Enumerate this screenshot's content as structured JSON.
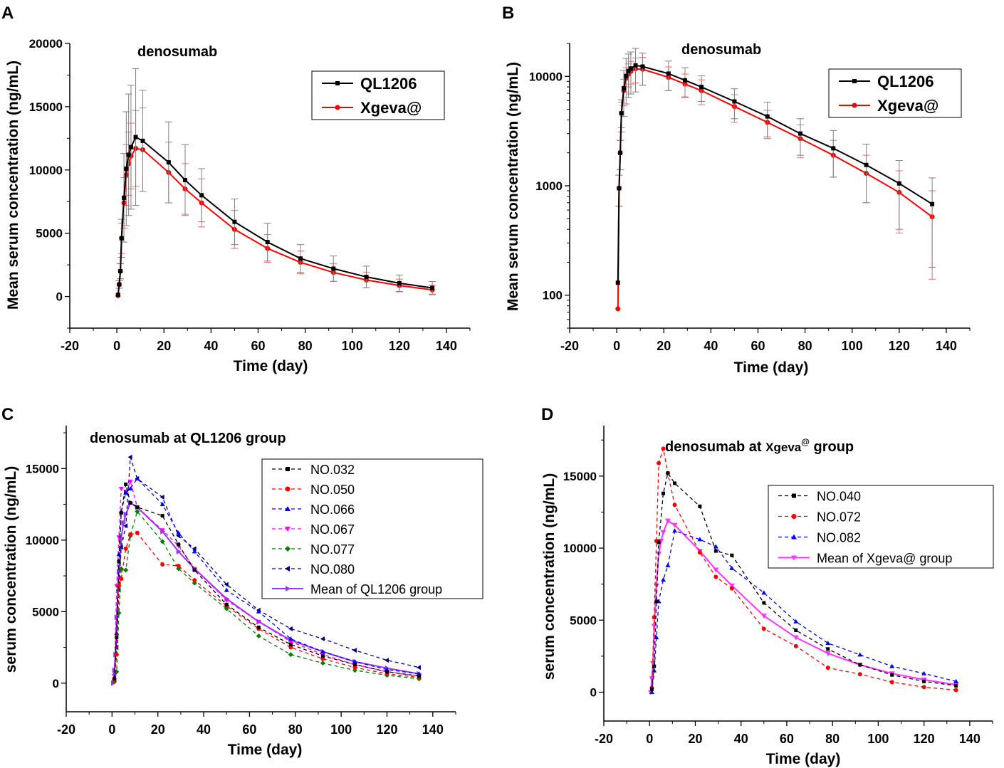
{
  "colors": {
    "axis": "#000000",
    "black": "#000000",
    "red": "#ff0000",
    "blue": "#0000ff",
    "magenta": "#ff00ff",
    "green": "#008000",
    "navy": "#000080",
    "violet": "#9933ff",
    "pink": "#ff33ff",
    "err_black": "#808080",
    "err_red": "#ff6666"
  },
  "chart_data": [
    {
      "panel_label": "A",
      "type": "line",
      "title": "denosumab",
      "xlabel": "Time (day)",
      "ylabel": "Mean serum concentration (ng/mL)",
      "xlim": [
        -20,
        150
      ],
      "ylim": [
        -2500,
        20000
      ],
      "yscale": "linear",
      "xticks": [
        -20,
        0,
        20,
        40,
        60,
        80,
        100,
        120,
        140
      ],
      "yticks": [
        0,
        5000,
        10000,
        15000,
        20000
      ],
      "legend": "top-right",
      "series": [
        {
          "name": "QL1206",
          "color": "black",
          "marker": "square",
          "dashed": false,
          "x": [
            0.5,
            1,
            1.5,
            2,
            3,
            4,
            5,
            6,
            8,
            11,
            22,
            29,
            36,
            50,
            64,
            78,
            92,
            106,
            120,
            134
          ],
          "y": [
            130,
            950,
            2000,
            4600,
            7800,
            10100,
            11200,
            11800,
            12600,
            12300,
            10600,
            9200,
            8000,
            5900,
            4300,
            3000,
            2200,
            1550,
            1050,
            680
          ],
          "err": [
            0,
            300,
            600,
            1500,
            3500,
            4500,
            4800,
            4900,
            5400,
            4000,
            3200,
            2800,
            2100,
            1800,
            1500,
            1100,
            1000,
            850,
            650,
            500
          ]
        },
        {
          "name": "Xgeva@",
          "color": "red",
          "marker": "circle",
          "dashed": false,
          "x": [
            0.5,
            1,
            1.5,
            2,
            3,
            4,
            5,
            6,
            8,
            11,
            22,
            29,
            36,
            50,
            64,
            78,
            92,
            106,
            120,
            134
          ],
          "y": [
            75,
            950,
            2000,
            4600,
            7400,
            9600,
            10500,
            11100,
            11700,
            11600,
            9800,
            8500,
            7400,
            5300,
            3800,
            2700,
            1900,
            1300,
            870,
            520
          ],
          "err": [
            0,
            300,
            600,
            1200,
            2000,
            2400,
            2500,
            2600,
            3000,
            3300,
            2400,
            2000,
            1900,
            1500,
            1100,
            900,
            700,
            600,
            500,
            380
          ]
        }
      ]
    },
    {
      "panel_label": "B",
      "type": "line",
      "title": "denosumab",
      "xlabel": "Time (day)",
      "ylabel": "Mean serum concentration (ng/mL)",
      "xlim": [
        -20,
        150
      ],
      "ylim": [
        50,
        20000
      ],
      "yscale": "log",
      "xticks": [
        -20,
        0,
        20,
        40,
        60,
        80,
        100,
        120,
        140
      ],
      "yticks": [
        100,
        1000,
        10000
      ],
      "legend": "top-right",
      "series": [
        {
          "name": "QL1206",
          "color": "black",
          "marker": "square",
          "dashed": false,
          "x": [
            0.5,
            1,
            1.5,
            2,
            3,
            4,
            5,
            6,
            8,
            11,
            22,
            29,
            36,
            50,
            64,
            78,
            92,
            106,
            120,
            134
          ],
          "y": [
            130,
            950,
            2000,
            4600,
            7800,
            10100,
            11200,
            11800,
            12600,
            12300,
            10600,
            9200,
            8000,
            5900,
            4300,
            3000,
            2200,
            1550,
            1050,
            680
          ],
          "err": [
            0,
            300,
            600,
            1500,
            3500,
            4500,
            4800,
            4900,
            5400,
            4000,
            3200,
            2800,
            2100,
            1800,
            1500,
            1100,
            1000,
            850,
            650,
            500
          ]
        },
        {
          "name": "Xgeva@",
          "color": "red",
          "marker": "circle",
          "dashed": false,
          "x": [
            0.5,
            1,
            1.5,
            2,
            3,
            4,
            5,
            6,
            8,
            11,
            22,
            29,
            36,
            50,
            64,
            78,
            92,
            106,
            120,
            134
          ],
          "y": [
            75,
            950,
            2000,
            4600,
            7400,
            9600,
            10500,
            11100,
            11700,
            11600,
            9800,
            8500,
            7400,
            5300,
            3800,
            2700,
            1900,
            1300,
            870,
            520
          ],
          "err": [
            0,
            300,
            600,
            1200,
            2000,
            2400,
            2500,
            2600,
            3000,
            3300,
            2400,
            2000,
            1900,
            1500,
            1100,
            900,
            700,
            600,
            500,
            380
          ]
        }
      ]
    },
    {
      "panel_label": "C",
      "type": "line",
      "title": "denosumab at QL1206 group",
      "xlabel": "Time (day)",
      "ylabel": "serum concentration (ng/mL)",
      "xlim": [
        -20,
        150
      ],
      "ylim": [
        -2000,
        18000
      ],
      "yscale": "linear",
      "xticks": [
        -20,
        0,
        20,
        40,
        60,
        80,
        100,
        120,
        140
      ],
      "yticks": [
        0,
        5000,
        10000,
        15000
      ],
      "legend": "right",
      "series": [
        {
          "name": "NO.032",
          "color": "black",
          "marker": "square",
          "dashed": true,
          "x": [
            1,
            2,
            3,
            4,
            6,
            8,
            11,
            22,
            29,
            36,
            50,
            64,
            78,
            92,
            106,
            120,
            134
          ],
          "y": [
            300,
            3200,
            8500,
            11900,
            13900,
            12600,
            12300,
            11700,
            9700,
            7900,
            5500,
            3900,
            2700,
            1900,
            1300,
            800,
            500
          ]
        },
        {
          "name": "NO.050",
          "color": "red",
          "marker": "circle",
          "dashed": true,
          "x": [
            1,
            2,
            3,
            4,
            6,
            8,
            11,
            22,
            29,
            36,
            50,
            64,
            78,
            92,
            106,
            120,
            134
          ],
          "y": [
            200,
            2000,
            6800,
            7300,
            9400,
            10400,
            10500,
            8300,
            8200,
            7200,
            5400,
            3800,
            2500,
            1700,
            1100,
            650,
            400
          ]
        },
        {
          "name": "NO.066",
          "color": "blue",
          "marker": "triangle-up",
          "dashed": true,
          "x": [
            1,
            2,
            3,
            4,
            6,
            8,
            11,
            22,
            29,
            36,
            50,
            64,
            78,
            92,
            106,
            120,
            134
          ],
          "y": [
            400,
            3500,
            9000,
            12000,
            13300,
            13600,
            14300,
            12500,
            10500,
            9200,
            6500,
            5000,
            3100,
            2200,
            1500,
            950,
            650
          ]
        },
        {
          "name": "NO.067",
          "color": "magenta",
          "marker": "triangle-down",
          "dashed": true,
          "x": [
            1,
            2,
            3,
            4,
            6,
            8,
            11,
            22,
            29,
            36,
            50,
            64,
            78,
            92,
            106,
            120,
            134
          ],
          "y": [
            500,
            6800,
            10200,
            13600,
            13400,
            14100,
            12300,
            10700,
            9600,
            8000,
            5800,
            4300,
            2900,
            2000,
            1300,
            800,
            500
          ]
        },
        {
          "name": "NO.077",
          "color": "green",
          "marker": "diamond",
          "dashed": true,
          "x": [
            1,
            2,
            3,
            4,
            6,
            8,
            11,
            22,
            29,
            36,
            50,
            64,
            78,
            92,
            106,
            120,
            134
          ],
          "y": [
            100,
            800,
            4900,
            8000,
            7900,
            10300,
            12000,
            9900,
            8000,
            7000,
            5200,
            3300,
            2000,
            1400,
            900,
            550,
            300
          ]
        },
        {
          "name": "NO.080",
          "color": "navy",
          "marker": "triangle-left",
          "dashed": true,
          "x": [
            1,
            2,
            3,
            4,
            6,
            8,
            11,
            22,
            29,
            36,
            50,
            64,
            78,
            92,
            106,
            120,
            134
          ],
          "y": [
            600,
            2500,
            6500,
            9500,
            11000,
            15800,
            14300,
            13000,
            10300,
            9400,
            6900,
            5100,
            3800,
            3100,
            2300,
            1600,
            1100
          ]
        },
        {
          "name": "Mean of QL1206 group",
          "color": "violet",
          "marker": "triangle-right",
          "dashed": false,
          "x": [
            0.5,
            1,
            1.5,
            2,
            3,
            4,
            5,
            6,
            8,
            11,
            22,
            29,
            36,
            50,
            64,
            78,
            92,
            106,
            120,
            134
          ],
          "y": [
            0,
            900,
            2000,
            4600,
            7800,
            10100,
            11200,
            11800,
            12600,
            12300,
            10600,
            9200,
            8000,
            5900,
            4300,
            3000,
            2200,
            1500,
            1050,
            650
          ]
        }
      ]
    },
    {
      "panel_label": "D",
      "type": "line",
      "title": "denosumab at ",
      "title_main": "Xgeva",
      "title_sup": "@",
      "title_end": " group",
      "xlabel": "Time (day)",
      "ylabel": "serum concentration (ng/mL)",
      "xlim": [
        -20,
        150
      ],
      "ylim": [
        -2000,
        18500
      ],
      "yscale": "linear",
      "xticks": [
        -20,
        0,
        20,
        40,
        60,
        80,
        100,
        120,
        140
      ],
      "yticks": [
        0,
        5000,
        10000,
        15000
      ],
      "legend": "right",
      "series": [
        {
          "name": "NO.040",
          "color": "black",
          "marker": "square",
          "dashed": true,
          "x": [
            1,
            2,
            3,
            4,
            6,
            8,
            11,
            22,
            29,
            36,
            50,
            64,
            78,
            92,
            106,
            120,
            134
          ],
          "y": [
            200,
            1800,
            6300,
            10400,
            13800,
            15200,
            14500,
            12900,
            9800,
            9500,
            6200,
            4300,
            3000,
            1900,
            1200,
            750,
            450
          ]
        },
        {
          "name": "NO.072",
          "color": "red",
          "marker": "circle",
          "dashed": true,
          "x": [
            1,
            2,
            3,
            4,
            6,
            8,
            11,
            22,
            29,
            36,
            50,
            64,
            78,
            92,
            106,
            120,
            134
          ],
          "y": [
            300,
            5200,
            10500,
            15900,
            16900,
            15200,
            13000,
            9700,
            8000,
            7200,
            4400,
            3200,
            1700,
            1250,
            700,
            350,
            150
          ]
        },
        {
          "name": "NO.082",
          "color": "blue",
          "marker": "triangle-up",
          "dashed": true,
          "x": [
            1,
            2,
            3,
            4,
            6,
            8,
            11,
            22,
            29,
            36,
            50,
            64,
            78,
            92,
            106,
            120,
            134
          ],
          "y": [
            0,
            1500,
            3800,
            6300,
            7800,
            8800,
            11200,
            10600,
            10100,
            8600,
            6900,
            4900,
            3400,
            2600,
            1800,
            1300,
            750
          ]
        },
        {
          "name": "Mean of Xgeva@ group",
          "color": "pink",
          "marker": "triangle-down",
          "dashed": false,
          "x": [
            0.5,
            1,
            1.5,
            2,
            3,
            4,
            5,
            6,
            8,
            11,
            22,
            29,
            36,
            50,
            64,
            78,
            92,
            106,
            120,
            134
          ],
          "y": [
            0,
            950,
            2000,
            4600,
            7400,
            9600,
            10500,
            11100,
            11900,
            11600,
            9800,
            8500,
            7400,
            5300,
            3800,
            2700,
            1900,
            1300,
            870,
            520
          ]
        }
      ]
    }
  ]
}
